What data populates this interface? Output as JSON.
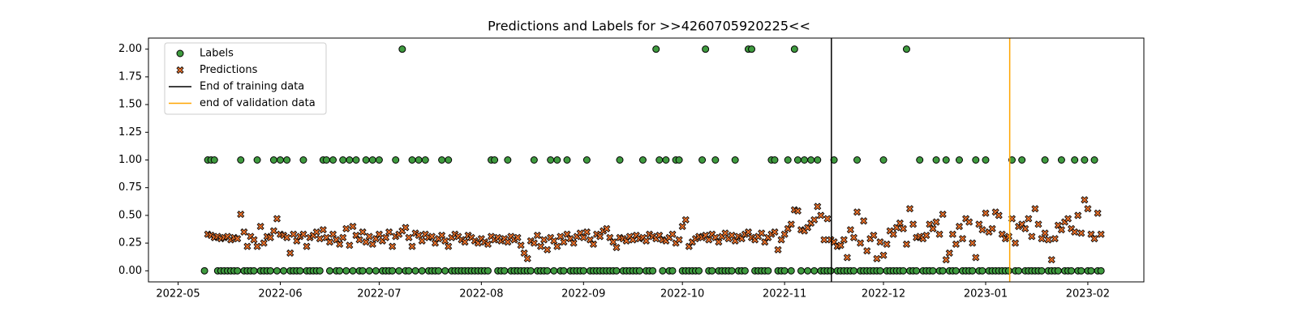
{
  "chart_data": {
    "type": "scatter",
    "title": "Predictions and Labels for >>4260705920225<<",
    "x": [
      8,
      9,
      10,
      11,
      12,
      13,
      14,
      15,
      16,
      17,
      18,
      19,
      20,
      21,
      22,
      23,
      24,
      25,
      26,
      27,
      28,
      29,
      30,
      31,
      32,
      33,
      34,
      35,
      36,
      37,
      38,
      39,
      40,
      41,
      42,
      43,
      44,
      45,
      46,
      47,
      48,
      49,
      50,
      51,
      52,
      53,
      54,
      55,
      56,
      57,
      58,
      59,
      60,
      61,
      62,
      63,
      64,
      65,
      66,
      67,
      68,
      69,
      70,
      71,
      72,
      73,
      74,
      75,
      76,
      77,
      78,
      79,
      80,
      81,
      82,
      83,
      84,
      85,
      86,
      87,
      88,
      89,
      90,
      91,
      92,
      93,
      94,
      95,
      96,
      97,
      98,
      99,
      100,
      101,
      102,
      103,
      104,
      105,
      106,
      107,
      108,
      109,
      110,
      111,
      112,
      113,
      114,
      115,
      116,
      117,
      118,
      119,
      120,
      121,
      122,
      123,
      124,
      125,
      126,
      127,
      128,
      129,
      130,
      131,
      132,
      133,
      134,
      135,
      136,
      137,
      138,
      139,
      140,
      141,
      142,
      143,
      144,
      145,
      146,
      147,
      148,
      149,
      150,
      151,
      152,
      153,
      154,
      155,
      156,
      157,
      158,
      159,
      160,
      161,
      162,
      163,
      164,
      165,
      166,
      167,
      168,
      169,
      170,
      171,
      172,
      173,
      174,
      175,
      176,
      177,
      178,
      179,
      180,
      181,
      182,
      183,
      184,
      185,
      186,
      187,
      188,
      189,
      190,
      191,
      192,
      193,
      194,
      195,
      196,
      197,
      198,
      199,
      200,
      201,
      202,
      203,
      204,
      205,
      206,
      207,
      208,
      209,
      210,
      211,
      212,
      213,
      214,
      215,
      216,
      217,
      218,
      219,
      220,
      221,
      222,
      223,
      224,
      225,
      226,
      227,
      228,
      229,
      230,
      231,
      232,
      233,
      234,
      235,
      236,
      237,
      238,
      239,
      240,
      241,
      242,
      243,
      244,
      245,
      246,
      247,
      248,
      249,
      250,
      251,
      252,
      253,
      254,
      255,
      256,
      257,
      258,
      259,
      260,
      261,
      262,
      263,
      264,
      265,
      266,
      267,
      268,
      269,
      270,
      271,
      272,
      273,
      274,
      275,
      276,
      277,
      278,
      279,
      280
    ],
    "xlim": [
      -9,
      293
    ],
    "xticks": [
      {
        "value": 0,
        "label": "2022-05"
      },
      {
        "value": 31,
        "label": "2022-06"
      },
      {
        "value": 61,
        "label": "2022-07"
      },
      {
        "value": 92,
        "label": "2022-08"
      },
      {
        "value": 123,
        "label": "2022-09"
      },
      {
        "value": 153,
        "label": "2022-10"
      },
      {
        "value": 184,
        "label": "2022-11"
      },
      {
        "value": 214,
        "label": "2022-12"
      },
      {
        "value": 245,
        "label": "2023-01"
      },
      {
        "value": 276,
        "label": "2023-02"
      }
    ],
    "ylim": [
      -0.1,
      2.1
    ],
    "yticks": [
      {
        "value": 0,
        "label": "0.00"
      },
      {
        "value": 0.25,
        "label": "0.25"
      },
      {
        "value": 0.5,
        "label": "0.50"
      },
      {
        "value": 0.75,
        "label": "0.75"
      },
      {
        "value": 1,
        "label": "1.00"
      },
      {
        "value": 1.25,
        "label": "1.25"
      },
      {
        "value": 1.5,
        "label": "1.50"
      },
      {
        "value": 1.75,
        "label": "1.75"
      },
      {
        "value": 2,
        "label": "2.00"
      }
    ],
    "series": [
      {
        "name": "Labels",
        "color": "#3f9b3f",
        "marker": "circle",
        "values": [
          0,
          1,
          1,
          1,
          0,
          0,
          0,
          0,
          0,
          0,
          0,
          1,
          0,
          0,
          0,
          0,
          1,
          0,
          0,
          0,
          0,
          1,
          0,
          1,
          0,
          1,
          0,
          0,
          0,
          0,
          1,
          0,
          0,
          0,
          0,
          0,
          1,
          1,
          0,
          1,
          0,
          0,
          1,
          0,
          1,
          0,
          1,
          0,
          0,
          1,
          0,
          1,
          0,
          1,
          0,
          0,
          0,
          0,
          1,
          0,
          2,
          0,
          0,
          1,
          0,
          1,
          0,
          1,
          0,
          0,
          0,
          0,
          1,
          0,
          1,
          0,
          0,
          0,
          0,
          0,
          0,
          0,
          0,
          0,
          0,
          0,
          0,
          1,
          1,
          0,
          0,
          0,
          1,
          0,
          0,
          0,
          0,
          0,
          0,
          0,
          1,
          0,
          0,
          0,
          0,
          1,
          0,
          1,
          0,
          0,
          1,
          0,
          0,
          0,
          0,
          0,
          1,
          0,
          0,
          0,
          0,
          0,
          0,
          0,
          0,
          0,
          1,
          0,
          0,
          0,
          0,
          0,
          0,
          1,
          0,
          0,
          0,
          2,
          1,
          0,
          1,
          0,
          0,
          1,
          1,
          0,
          0,
          0,
          0,
          0,
          0,
          1,
          2,
          0,
          0,
          1,
          0,
          0,
          0,
          0,
          0,
          1,
          0,
          0,
          0,
          2,
          2,
          0,
          0,
          0,
          0,
          0,
          1,
          1,
          0,
          0,
          0,
          1,
          0,
          2,
          1,
          0,
          1,
          0,
          1,
          0,
          1,
          0,
          0,
          0,
          0,
          1,
          0,
          0,
          0,
          0,
          0,
          0,
          1,
          0,
          0,
          0,
          0,
          0,
          0,
          0,
          1,
          0,
          0,
          0,
          0,
          0,
          0,
          2,
          0,
          0,
          0,
          1,
          0,
          0,
          0,
          0,
          1,
          0,
          0,
          1,
          0,
          0,
          0,
          1,
          0,
          0,
          0,
          0,
          1,
          0,
          0,
          1,
          0,
          0,
          0,
          0,
          0,
          0,
          0,
          1,
          0,
          0,
          1,
          0,
          0,
          0,
          0,
          0,
          0,
          1,
          0,
          0,
          0,
          0,
          1,
          0,
          0,
          0,
          1,
          0,
          0,
          1,
          0,
          0,
          1,
          0,
          0
        ]
      },
      {
        "name": "Predictions",
        "color": "#e8702a",
        "marker": "x",
        "values": [
          null,
          0.33,
          0.32,
          0.3,
          0.31,
          0.29,
          0.3,
          0.31,
          0.28,
          0.3,
          0.29,
          0.51,
          0.35,
          0.22,
          0.31,
          0.28,
          0.22,
          0.4,
          0.25,
          0.31,
          0.3,
          0.36,
          0.47,
          0.33,
          0.32,
          0.3,
          0.16,
          0.33,
          0.27,
          0.31,
          0.33,
          0.22,
          0.3,
          0.32,
          0.35,
          0.29,
          0.37,
          0.3,
          0.26,
          0.33,
          0.28,
          0.24,
          0.3,
          0.38,
          0.23,
          0.4,
          0.32,
          0.28,
          0.35,
          0.26,
          0.31,
          0.24,
          0.29,
          0.33,
          0.27,
          0.3,
          0.35,
          0.22,
          0.31,
          0.33,
          0.36,
          0.39,
          0.3,
          0.22,
          0.34,
          0.32,
          0.27,
          0.33,
          0.3,
          0.31,
          0.25,
          0.29,
          0.32,
          0.27,
          0.22,
          0.3,
          0.33,
          0.31,
          0.28,
          0.26,
          0.32,
          0.3,
          0.27,
          0.25,
          0.29,
          0.26,
          0.24,
          0.31,
          0.28,
          0.3,
          0.27,
          0.29,
          0.26,
          0.31,
          0.28,
          0.3,
          0.23,
          0.16,
          0.11,
          0.27,
          0.25,
          0.32,
          0.22,
          0.28,
          0.19,
          0.3,
          0.27,
          0.22,
          0.31,
          0.26,
          0.33,
          0.29,
          0.25,
          0.31,
          0.34,
          0.3,
          0.35,
          0.28,
          0.24,
          0.33,
          0.31,
          0.36,
          0.38,
          0.3,
          0.26,
          0.21,
          0.3,
          0.29,
          0.27,
          0.31,
          0.28,
          0.32,
          0.29,
          0.3,
          0.27,
          0.33,
          0.31,
          0.29,
          0.32,
          0.28,
          0.27,
          0.3,
          0.33,
          0.25,
          0.28,
          0.4,
          0.46,
          0.22,
          0.26,
          0.29,
          0.31,
          0.3,
          0.32,
          0.28,
          0.33,
          0.3,
          0.26,
          0.31,
          0.34,
          0.29,
          0.32,
          0.27,
          0.31,
          0.29,
          0.33,
          0.35,
          0.3,
          0.28,
          0.31,
          0.34,
          0.26,
          0.3,
          0.33,
          0.35,
          0.19,
          0.28,
          0.33,
          0.38,
          0.42,
          0.55,
          0.54,
          0.37,
          0.36,
          0.39,
          0.43,
          0.46,
          0.58,
          0.5,
          0.28,
          0.47,
          0.28,
          0.26,
          0.22,
          0.23,
          0.28,
          0.12,
          0.37,
          0.3,
          0.53,
          0.25,
          0.45,
          0.18,
          0.29,
          0.32,
          0.11,
          0.26,
          0.14,
          0.24,
          0.36,
          0.33,
          0.39,
          0.43,
          0.38,
          0.24,
          0.56,
          0.42,
          0.3,
          0.31,
          0.29,
          0.32,
          0.42,
          0.38,
          0.44,
          0.33,
          0.51,
          0.1,
          0.16,
          0.33,
          0.24,
          0.4,
          0.29,
          0.47,
          0.44,
          0.25,
          0.12,
          0.42,
          0.37,
          0.52,
          0.35,
          0.38,
          0.53,
          0.5,
          0.33,
          0.29,
          0.31,
          0.47,
          0.25,
          0.4,
          0.42,
          0.38,
          0.47,
          0.31,
          0.56,
          0.42,
          0.29,
          0.34,
          0.28,
          0.1,
          0.29,
          0.41,
          0.37,
          0.44,
          0.47,
          0.38,
          0.35,
          0.5,
          0.34,
          0.64,
          0.56,
          0.33,
          0.29,
          0.52,
          0.33
        ]
      }
    ],
    "vlines": [
      {
        "name": "End of training data",
        "color": "#000000",
        "x": 198.2
      },
      {
        "name": "end of validation data",
        "color": "#ffa500",
        "x": 252.3
      }
    ],
    "legend": "upper left"
  }
}
